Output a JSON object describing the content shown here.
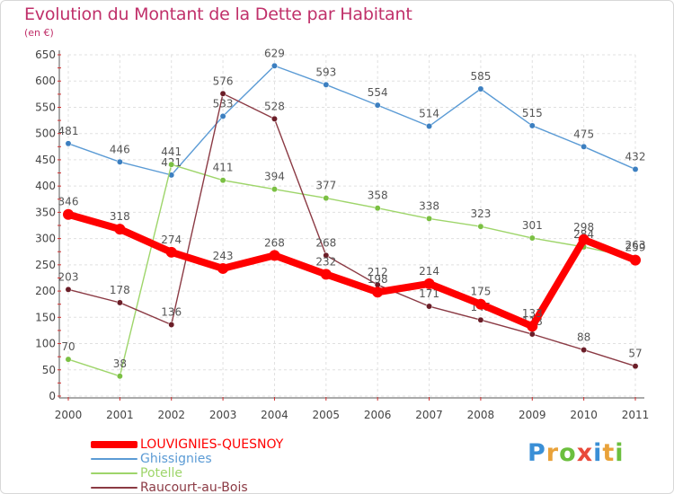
{
  "header": {
    "title": "Evolution du Montant de la Dette par Habitant",
    "subtitle": "(en €)"
  },
  "logo": {
    "letters": [
      {
        "ch": "P",
        "color": "#3a8fd6"
      },
      {
        "ch": "r",
        "color": "#e9a23a"
      },
      {
        "ch": "o",
        "color": "#6cbf3e"
      },
      {
        "ch": "x",
        "color": "#e94a3a"
      },
      {
        "ch": "i",
        "color": "#3a8fd6"
      },
      {
        "ch": "t",
        "color": "#e9a23a"
      },
      {
        "ch": "i",
        "color": "#6cbf3e"
      }
    ]
  },
  "chart_data": {
    "type": "line",
    "title": "Evolution du Montant de la Dette par Habitant",
    "subtitle": "(en €)",
    "categories": [
      "2000",
      "2001",
      "2002",
      "2003",
      "2004",
      "2005",
      "2006",
      "2007",
      "2008",
      "2009",
      "2010",
      "2011"
    ],
    "ylim": [
      0,
      650
    ],
    "yticks": [
      0,
      50,
      100,
      150,
      200,
      250,
      300,
      350,
      400,
      450,
      500,
      550,
      600,
      650
    ],
    "grid": true,
    "legend_position": "bottom-left",
    "series": [
      {
        "name": "Ghissignies",
        "color": "#5b9bd5",
        "marker": "#3c7fc0",
        "values": [
          481,
          446,
          421,
          533,
          629,
          593,
          554,
          514,
          585,
          515,
          475,
          432
        ]
      },
      {
        "name": "Potelle",
        "color": "#9ed56a",
        "marker": "#7bc043",
        "values": [
          70,
          38,
          441,
          411,
          394,
          377,
          358,
          338,
          323,
          301,
          284,
          263
        ]
      },
      {
        "name": "Raucourt-au-Bois",
        "color": "#8b3a44",
        "marker": "#6b1e28",
        "values": [
          203,
          178,
          136,
          576,
          528,
          268,
          212,
          171,
          145,
          118,
          88,
          57
        ]
      },
      {
        "name": "LOUVIGNIES-QUESNOY",
        "color": "#ff0000",
        "marker": "#ff0000",
        "values": [
          346,
          318,
          274,
          243,
          268,
          232,
          198,
          214,
          175,
          133,
          298,
          259
        ]
      }
    ]
  },
  "legend": {
    "items": [
      {
        "label": "LOUVIGNIES-QUESNOY",
        "color": "#ff0000",
        "thickness": 8
      },
      {
        "label": "Ghissignies",
        "color": "#5b9bd5",
        "thickness": 2
      },
      {
        "label": "Potelle",
        "color": "#9ed56a",
        "thickness": 2
      },
      {
        "label": "Raucourt-au-Bois",
        "color": "#8b3a44",
        "thickness": 2
      }
    ]
  }
}
